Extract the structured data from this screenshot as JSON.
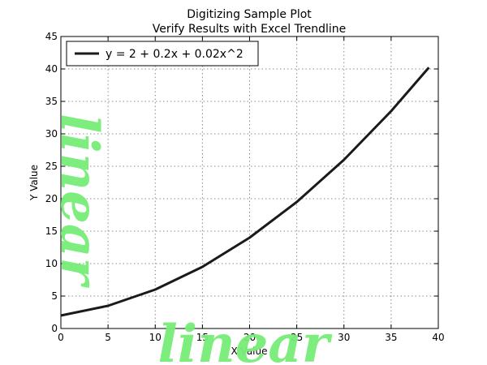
{
  "chart_data": {
    "type": "line",
    "title": "Digitizing Sample Plot",
    "subtitle": "Verify Results with Excel Trendline",
    "xlabel": "X Value",
    "ylabel": "Y Value",
    "xlim": [
      0,
      40
    ],
    "ylim": [
      0,
      45
    ],
    "x_ticks": [
      "0",
      "5",
      "10",
      "15",
      "20",
      "25",
      "30",
      "35",
      "40"
    ],
    "y_ticks": [
      "0",
      "5",
      "10",
      "15",
      "20",
      "25",
      "30",
      "35",
      "40",
      "45"
    ],
    "grid": true,
    "legend_position": "top-left",
    "series": [
      {
        "name": "y = 2 + 0.2x + 0.02x^2",
        "color": "#1a1a1a",
        "x": [
          0,
          5,
          10,
          15,
          20,
          25,
          30,
          35,
          39
        ],
        "y": [
          2.0,
          3.5,
          6.0,
          9.5,
          14.0,
          19.5,
          26.0,
          33.5,
          40.22
        ]
      }
    ],
    "watermarks": [
      "linear",
      "linear"
    ]
  }
}
